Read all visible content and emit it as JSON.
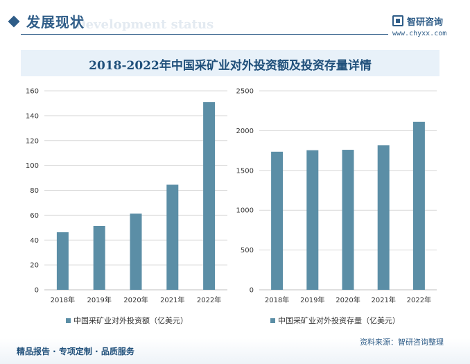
{
  "header": {
    "title": "发展现状",
    "subtitle": "Development status",
    "logo_text": "智研咨询",
    "logo_url": "www.chyxx.com"
  },
  "chart_title": "2018-2022年中国采矿业对外投资额及投资存量详情",
  "colors": {
    "bar": "#5b8ea6",
    "accent": "#2f5d88",
    "title_band": "#e8f1f9"
  },
  "chart_data": [
    {
      "type": "bar",
      "categories": [
        "2018年",
        "2019年",
        "2020年",
        "2021年",
        "2022年"
      ],
      "series": [
        {
          "name": "中国采矿业对外投资额（亿美元）",
          "values": [
            46.3,
            51.3,
            61.3,
            84.5,
            151.0
          ]
        }
      ],
      "ylim": [
        0,
        160
      ],
      "yticks": [
        0,
        20,
        40,
        60,
        80,
        100,
        120,
        140,
        160
      ],
      "grid": true,
      "legend": "bottom"
    },
    {
      "type": "bar",
      "categories": [
        "2018年",
        "2019年",
        "2020年",
        "2021年",
        "2022年"
      ],
      "series": [
        {
          "name": "中国采矿业对外投资存量（亿美元）",
          "values": [
            1735,
            1754,
            1759,
            1817,
            2110
          ]
        }
      ],
      "ylim": [
        0,
        2500
      ],
      "yticks": [
        0,
        500,
        1000,
        1500,
        2000,
        2500
      ],
      "grid": true,
      "legend": "bottom"
    }
  ],
  "footer": {
    "left": "精品报告 · 专项定制 · 品质服务",
    "source": "资料来源：智研咨询整理"
  }
}
